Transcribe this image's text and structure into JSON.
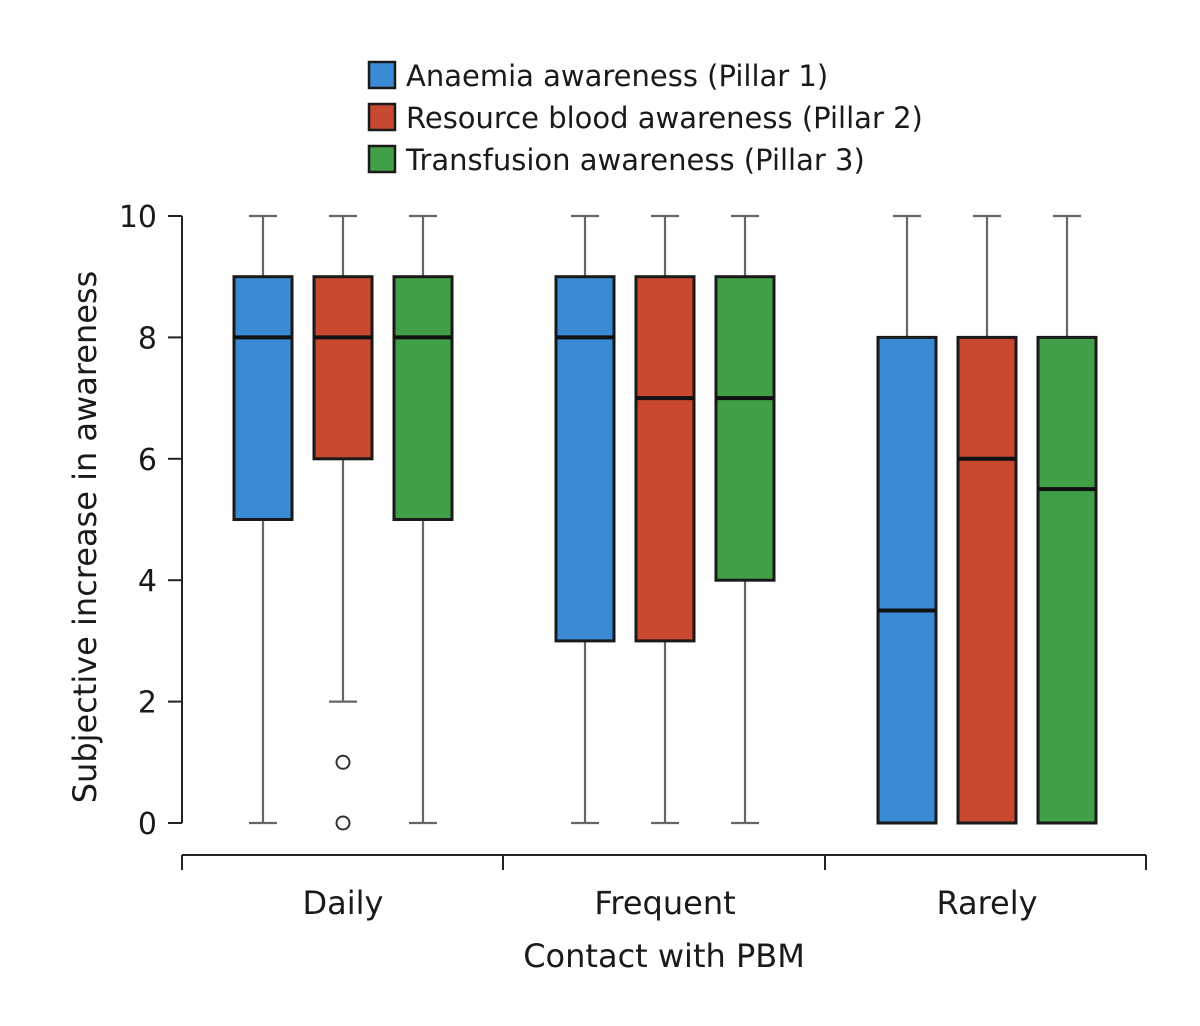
{
  "chart_data": {
    "type": "boxplot",
    "title": "",
    "xlabel": "Contact with PBM",
    "ylabel": "Subjective increase in awareness",
    "ylim": [
      0,
      10
    ],
    "yticks": [
      0,
      2,
      4,
      6,
      8,
      10
    ],
    "categories": [
      "Daily",
      "Frequent",
      "Rarely"
    ],
    "legend_position": "top",
    "grid": false,
    "series": [
      {
        "name": "Anaemia awareness (Pillar 1)",
        "color": "#3a8bd3",
        "boxes": [
          {
            "whisker_low": 0,
            "q1": 5,
            "median": 8,
            "q3": 9,
            "whisker_high": 10,
            "outliers": []
          },
          {
            "whisker_low": 0,
            "q1": 3,
            "median": 8,
            "q3": 9,
            "whisker_high": 10,
            "outliers": []
          },
          {
            "whisker_low": 0,
            "q1": 0,
            "median": 3.5,
            "q3": 8,
            "whisker_high": 10,
            "outliers": []
          }
        ]
      },
      {
        "name": "Resource blood awareness (Pillar 2)",
        "color": "#c94830",
        "boxes": [
          {
            "whisker_low": 2,
            "q1": 6,
            "median": 8,
            "q3": 9,
            "whisker_high": 10,
            "outliers": [
              1,
              0
            ]
          },
          {
            "whisker_low": 0,
            "q1": 3,
            "median": 7,
            "q3": 9,
            "whisker_high": 10,
            "outliers": []
          },
          {
            "whisker_low": 0,
            "q1": 0,
            "median": 6,
            "q3": 8,
            "whisker_high": 10,
            "outliers": []
          }
        ]
      },
      {
        "name": "Transfusion awareness (Pillar 3)",
        "color": "#41a047",
        "boxes": [
          {
            "whisker_low": 0,
            "q1": 5,
            "median": 8,
            "q3": 9,
            "whisker_high": 10,
            "outliers": []
          },
          {
            "whisker_low": 0,
            "q1": 4,
            "median": 7,
            "q3": 9,
            "whisker_high": 10,
            "outliers": []
          },
          {
            "whisker_low": 0,
            "q1": 0,
            "median": 5.5,
            "q3": 8,
            "whisker_high": 10,
            "outliers": []
          }
        ]
      }
    ]
  }
}
